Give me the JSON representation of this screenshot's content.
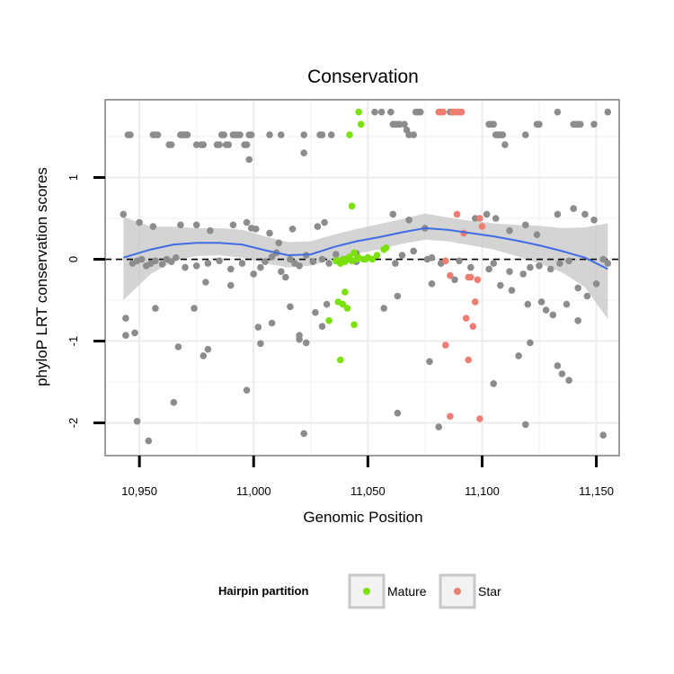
{
  "chart_data": {
    "type": "scatter",
    "title": "Conservation",
    "xlabel": "Genomic Position",
    "ylabel": "phyloP LRT conservation scores",
    "xlim": [
      10935,
      11160
    ],
    "ylim": [
      -2.4,
      1.95
    ],
    "x_ticks": [
      10950,
      11000,
      11050,
      11100,
      11150
    ],
    "x_tick_labels": [
      "10,950",
      "11,000",
      "11,050",
      "11,100",
      "11,150"
    ],
    "y_ticks": [
      -2,
      -1,
      0,
      1
    ],
    "y_tick_labels": [
      "-2",
      "-1",
      "0",
      "1"
    ],
    "reference_line": {
      "y": 0,
      "style": "dashed"
    },
    "grid": true,
    "colors": {
      "Other": "#8c8c8c",
      "Mature": "#7ce00a",
      "Star": "#ee7d72",
      "smooth": "#3f6de4",
      "band": "#c9c9c9"
    },
    "legend": {
      "title": "Hairpin partition",
      "position": "bottom",
      "entries": [
        {
          "label": "Mature",
          "color": "#7ce00a"
        },
        {
          "label": "Star",
          "color": "#ee7d72"
        }
      ]
    },
    "smooth": {
      "x": [
        10943,
        10955,
        10965,
        10975,
        10985,
        10995,
        11005,
        11015,
        11025,
        11035,
        11045,
        11055,
        11065,
        11075,
        11085,
        11095,
        11105,
        11115,
        11125,
        11135,
        11145,
        11155
      ],
      "y": [
        0.02,
        0.12,
        0.18,
        0.2,
        0.2,
        0.18,
        0.11,
        0.05,
        0.06,
        0.15,
        0.22,
        0.27,
        0.33,
        0.38,
        0.36,
        0.32,
        0.28,
        0.23,
        0.17,
        0.1,
        0.02,
        -0.12
      ],
      "lower": [
        -0.5,
        -0.18,
        -0.02,
        0.04,
        0.05,
        0.02,
        -0.05,
        -0.1,
        -0.08,
        0.0,
        0.07,
        0.12,
        0.19,
        0.24,
        0.22,
        0.17,
        0.12,
        0.04,
        -0.05,
        -0.16,
        -0.34,
        -0.73
      ],
      "upper": [
        0.52,
        0.4,
        0.4,
        0.38,
        0.38,
        0.36,
        0.28,
        0.21,
        0.22,
        0.3,
        0.37,
        0.43,
        0.49,
        0.56,
        0.51,
        0.47,
        0.44,
        0.42,
        0.41,
        0.38,
        0.39,
        0.44
      ]
    },
    "series": [
      {
        "name": "Other",
        "x": [
          10945,
          10946,
          10956,
          10957,
          10958,
          10963,
          10964,
          10968,
          10969,
          10970,
          10971,
          10975,
          10977,
          10978,
          10984,
          10985,
          10986,
          10987,
          10988,
          10989,
          10991,
          10992,
          10993,
          10994,
          10996,
          10997,
          10998,
          10999,
          11007,
          11012,
          11022,
          11029,
          11030,
          11053,
          11056,
          11060,
          11061,
          11062,
          11063,
          11064,
          11066,
          11067,
          11068,
          11070,
          11071,
          11072,
          11073,
          11086,
          11087,
          11103,
          11104,
          11105,
          11106,
          11107,
          11108,
          11109,
          11110,
          11119,
          11124,
          11125,
          11133,
          11149,
          11155,
          10998,
          11022,
          11034,
          11140,
          11141,
          11142,
          11143,
          10943,
          10950,
          10956,
          10968,
          10975,
          10981,
          10991,
          10997,
          10999,
          11001,
          11007,
          11011,
          11017,
          11028,
          11031,
          11045,
          11061,
          11068,
          11075,
          11097,
          11102,
          11106,
          11112,
          11119,
          11124,
          11133,
          11140,
          11145,
          11149,
          10947,
          10949,
          10951,
          10953,
          10955,
          10957,
          10960,
          10962,
          10964,
          10966,
          10970,
          10975,
          10980,
          10985,
          10990,
          10995,
          11000,
          11003,
          11005,
          11008,
          11010,
          11012,
          11014,
          11016,
          11018,
          11020,
          11023,
          11026,
          11030,
          11033,
          11036,
          11040,
          11045,
          11050,
          11062,
          11065,
          11070,
          11076,
          11078,
          11082,
          11090,
          11095,
          11103,
          11105,
          11112,
          11118,
          11121,
          11125,
          11130,
          11134,
          11138,
          11142,
          11146,
          11150,
          11153,
          11155,
          10944,
          10957,
          10974,
          10979,
          10990,
          11002,
          11008,
          11016,
          11020,
          11027,
          11032,
          11057,
          11063,
          11078,
          11088,
          11108,
          11113,
          11120,
          11126,
          11128,
          11131,
          11137,
          11142,
          10944,
          10948,
          10967,
          10978,
          10980,
          11003,
          11020,
          11023,
          11030,
          11077,
          11105,
          11116,
          11121,
          11133,
          11135,
          11138,
          10965,
          10997,
          11063,
          11081,
          10949,
          11022,
          11119,
          11153,
          10954
        ],
        "y": [
          1.52,
          1.52,
          1.52,
          1.52,
          1.52,
          1.4,
          1.4,
          1.52,
          1.52,
          1.52,
          1.52,
          1.4,
          1.4,
          1.4,
          1.4,
          1.4,
          1.52,
          1.52,
          1.4,
          1.4,
          1.52,
          1.52,
          1.52,
          1.52,
          1.4,
          1.4,
          1.52,
          1.52,
          1.52,
          1.52,
          1.3,
          1.52,
          1.52,
          1.8,
          1.8,
          1.8,
          1.65,
          1.65,
          1.65,
          1.65,
          1.65,
          1.58,
          1.52,
          1.52,
          1.8,
          1.8,
          1.8,
          1.8,
          1.8,
          1.65,
          1.65,
          1.65,
          1.52,
          1.52,
          1.52,
          1.52,
          1.4,
          1.52,
          1.65,
          1.65,
          1.8,
          1.65,
          1.8,
          1.22,
          1.52,
          1.52,
          1.65,
          1.65,
          1.65,
          1.65,
          0.55,
          0.45,
          0.4,
          0.42,
          0.42,
          0.35,
          0.42,
          0.45,
          0.38,
          0.37,
          0.32,
          0.2,
          0.37,
          0.4,
          0.45,
          0.07,
          0.55,
          0.48,
          0.38,
          0.5,
          0.55,
          0.5,
          0.35,
          0.42,
          0.3,
          0.55,
          0.62,
          0.55,
          0.48,
          -0.05,
          -0.02,
          0.0,
          -0.08,
          -0.05,
          -0.02,
          -0.06,
          0.0,
          -0.03,
          0.02,
          -0.1,
          -0.08,
          -0.05,
          -0.02,
          -0.12,
          -0.05,
          -0.18,
          -0.1,
          -0.03,
          0.03,
          0.08,
          -0.15,
          -0.22,
          0.0,
          -0.05,
          -0.08,
          0.05,
          -0.03,
          0.0,
          -0.05,
          0.06,
          0.0,
          -0.03,
          0.02,
          -0.05,
          0.05,
          0.1,
          0.0,
          0.02,
          -0.05,
          -0.02,
          -0.1,
          -0.12,
          -0.05,
          -0.15,
          -0.18,
          -0.1,
          -0.08,
          -0.12,
          -0.05,
          -0.02,
          -0.35,
          -0.45,
          -0.3,
          0.0,
          -0.05,
          -0.72,
          -0.6,
          -0.6,
          -0.28,
          -0.32,
          -0.83,
          -0.78,
          -0.58,
          -0.98,
          -0.65,
          -0.55,
          -0.6,
          -0.45,
          -0.3,
          -0.25,
          -0.32,
          -0.38,
          -0.55,
          -0.52,
          -0.62,
          -0.68,
          -0.55,
          -0.75,
          -0.93,
          -0.9,
          -1.07,
          -1.18,
          -1.1,
          -1.03,
          -0.93,
          -1.02,
          -0.82,
          -1.25,
          -1.52,
          -1.18,
          -1.02,
          -1.3,
          -1.4,
          -1.48,
          -1.75,
          -1.6,
          -1.88,
          -2.05,
          -1.98,
          -2.13,
          -2.02,
          -2.15,
          -2.22
        ]
      },
      {
        "name": "Mature",
        "x": [
          11046,
          11047,
          11042,
          11043,
          11036,
          11037,
          11038,
          11039,
          11040,
          11041,
          11042,
          11043,
          11044,
          11045,
          11046,
          11048,
          11049,
          11050,
          11052,
          11054,
          11057,
          11058,
          11040,
          11039,
          11037,
          11041,
          11033,
          11044,
          11038
        ],
        "y": [
          1.8,
          1.65,
          1.52,
          0.65,
          -0.02,
          -0.02,
          -0.05,
          0.0,
          -0.03,
          0.0,
          0.03,
          -0.02,
          0.08,
          0.0,
          0.02,
          0.0,
          0.0,
          0.02,
          0.0,
          0.05,
          0.12,
          0.14,
          -0.4,
          -0.55,
          -0.52,
          -0.6,
          -0.75,
          -0.8,
          -1.23
        ]
      },
      {
        "name": "Star",
        "x": [
          11081,
          11082,
          11083,
          11087,
          11088,
          11089,
          11090,
          11091,
          11089,
          11092,
          11099,
          11100,
          11084,
          11086,
          11094,
          11095,
          11098,
          11097,
          11093,
          11096,
          11084,
          11094,
          11086,
          11099
        ],
        "y": [
          1.8,
          1.8,
          1.8,
          1.8,
          1.8,
          1.8,
          1.8,
          1.8,
          0.55,
          0.32,
          0.5,
          0.4,
          -0.02,
          -0.2,
          -0.22,
          -0.22,
          -0.25,
          -0.52,
          -0.72,
          -0.82,
          -1.05,
          -1.23,
          -1.92,
          -1.95
        ]
      }
    ]
  }
}
